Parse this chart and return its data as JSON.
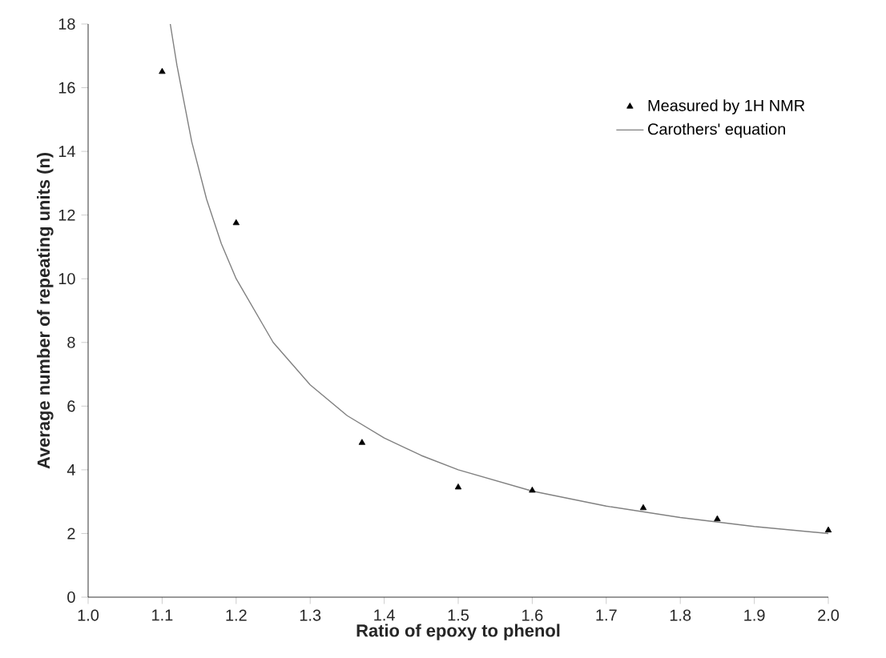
{
  "chart_data": {
    "type": "scatter",
    "xlabel": "Ratio of epoxy to phenol",
    "ylabel": "Average number of repeating units (n)",
    "xlim": [
      1.0,
      2.0
    ],
    "xticks": [
      {
        "value": 1.0,
        "label": "1.0"
      },
      1.1,
      1.2,
      1.3,
      1.4,
      1.5,
      1.6,
      1.7,
      1.8,
      1.9,
      {
        "value": 2.0,
        "label": "2.0"
      }
    ],
    "ylim": [
      0,
      18
    ],
    "yticks": [
      0,
      2,
      4,
      6,
      8,
      10,
      12,
      14,
      16,
      18
    ],
    "grid": false,
    "legend": "top right",
    "series": [
      {
        "name": "Measured by 1H NMR",
        "marker": "triangle",
        "color": "#000000",
        "x": [
          1.1,
          1.2,
          1.37,
          1.5,
          1.6,
          1.75,
          1.85,
          2.0
        ],
        "values": [
          16.5,
          11.75,
          4.85,
          3.45,
          3.35,
          2.8,
          2.45,
          2.1
        ]
      },
      {
        "name": "Carothers' equation",
        "type": "line",
        "marker": "none",
        "color": "#808080",
        "x": [
          1.111,
          1.12,
          1.14,
          1.16,
          1.18,
          1.2,
          1.25,
          1.3,
          1.35,
          1.4,
          1.45,
          1.5,
          1.6,
          1.7,
          1.8,
          1.9,
          2.0
        ],
        "values": [
          18,
          16.7,
          14.3,
          12.5,
          11.1,
          10,
          8,
          6.67,
          5.7,
          5,
          4.45,
          4,
          3.33,
          2.86,
          2.5,
          2.22,
          2.0
        ]
      }
    ]
  }
}
